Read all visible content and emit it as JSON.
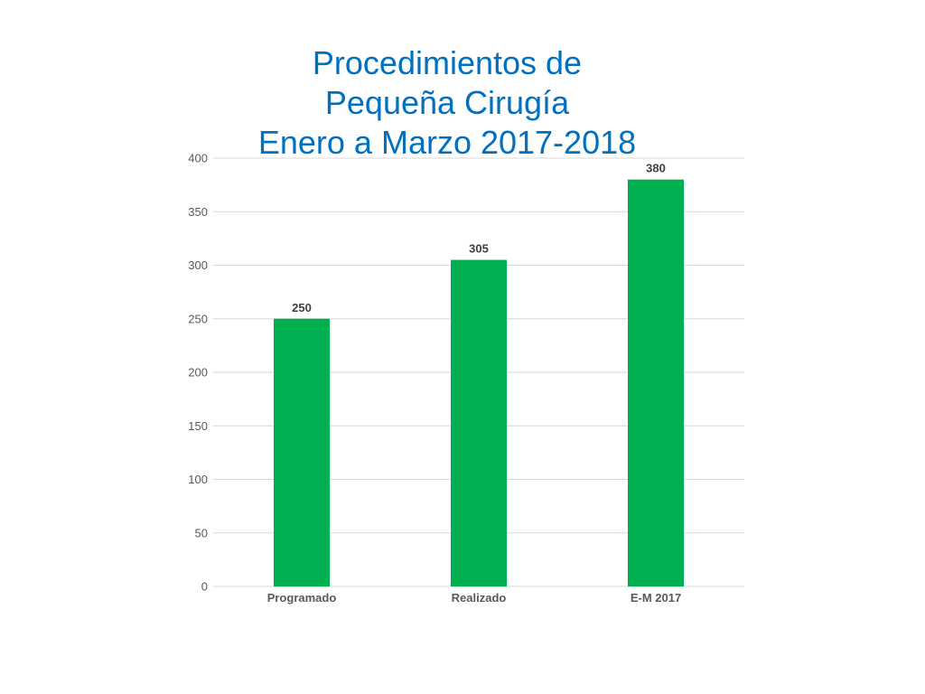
{
  "chart_data": {
    "type": "bar",
    "title": [
      "Procedimientos de",
      "Pequeña Cirugía",
      "Enero a Marzo 2017-2018"
    ],
    "categories": [
      "Programado",
      "Realizado",
      "E-M 2017"
    ],
    "values": [
      250,
      305,
      380
    ],
    "data_labels": [
      "250",
      "305",
      "380"
    ],
    "y_ticks": [
      0,
      50,
      100,
      150,
      200,
      250,
      300,
      350,
      400
    ],
    "ylim": [
      0,
      400
    ],
    "xlabel": "",
    "ylabel": "",
    "grid": true,
    "legend": "none",
    "bar_color": "#00b050",
    "title_color": "#0070c0"
  }
}
